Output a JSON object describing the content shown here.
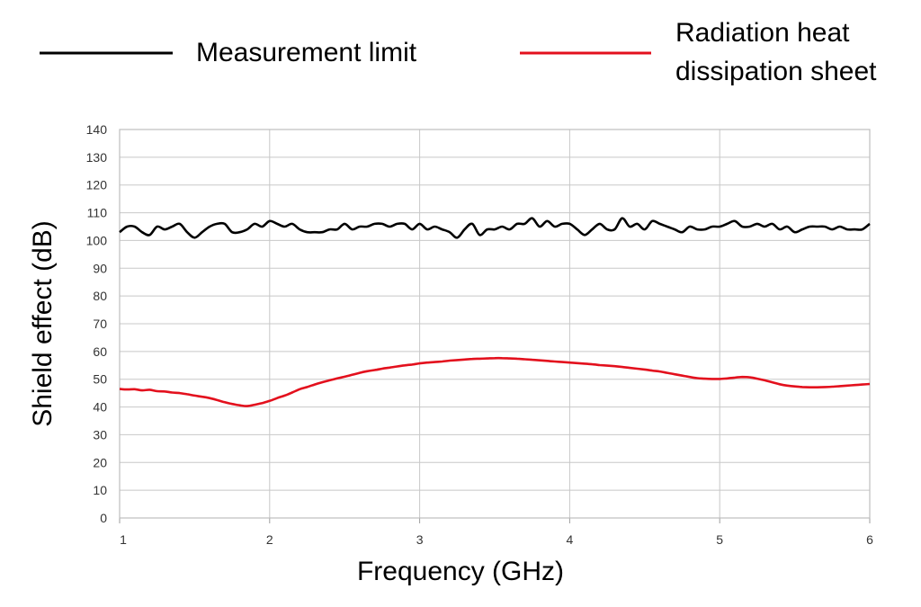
{
  "chart_data": {
    "type": "line",
    "title": "",
    "xlabel": "Frequency (GHz)",
    "ylabel": "Shield effect (dB)",
    "xlim": [
      1,
      6
    ],
    "ylim": [
      0,
      140
    ],
    "x_ticks": [
      1,
      2,
      3,
      4,
      5,
      6
    ],
    "y_ticks": [
      0,
      10,
      20,
      30,
      40,
      50,
      60,
      70,
      80,
      90,
      100,
      110,
      120,
      130,
      140
    ],
    "grid": true,
    "legend_position": "top",
    "series": [
      {
        "name": "Measurement limit",
        "color": "#000000",
        "x": [
          1.0,
          1.05,
          1.1,
          1.15,
          1.2,
          1.25,
          1.3,
          1.35,
          1.4,
          1.45,
          1.5,
          1.55,
          1.6,
          1.65,
          1.7,
          1.75,
          1.8,
          1.85,
          1.9,
          1.95,
          2.0,
          2.05,
          2.1,
          2.15,
          2.2,
          2.25,
          2.3,
          2.35,
          2.4,
          2.45,
          2.5,
          2.55,
          2.6,
          2.65,
          2.7,
          2.75,
          2.8,
          2.85,
          2.9,
          2.95,
          3.0,
          3.05,
          3.1,
          3.15,
          3.2,
          3.25,
          3.3,
          3.35,
          3.4,
          3.45,
          3.5,
          3.55,
          3.6,
          3.65,
          3.7,
          3.75,
          3.8,
          3.85,
          3.9,
          3.95,
          4.0,
          4.05,
          4.1,
          4.15,
          4.2,
          4.25,
          4.3,
          4.35,
          4.4,
          4.45,
          4.5,
          4.55,
          4.6,
          4.65,
          4.7,
          4.75,
          4.8,
          4.85,
          4.9,
          4.95,
          5.0,
          5.05,
          5.1,
          5.15,
          5.2,
          5.25,
          5.3,
          5.35,
          5.4,
          5.45,
          5.5,
          5.55,
          5.6,
          5.65,
          5.7,
          5.75,
          5.8,
          5.85,
          5.9,
          5.95,
          6.0
        ],
        "y": [
          103,
          105,
          105,
          103,
          102,
          105,
          104,
          105,
          106,
          103,
          101,
          103,
          105,
          106,
          106,
          103,
          103,
          104,
          106,
          105,
          107,
          106,
          105,
          106,
          104,
          103,
          103,
          103,
          104,
          104,
          106,
          104,
          105,
          105,
          106,
          106,
          105,
          106,
          106,
          104,
          106,
          104,
          105,
          104,
          103,
          101,
          104,
          106,
          102,
          104,
          104,
          105,
          104,
          106,
          106,
          108,
          105,
          107,
          105,
          106,
          106,
          104,
          102,
          104,
          106,
          104,
          104,
          108,
          105,
          106,
          104,
          107,
          106,
          105,
          104,
          103,
          105,
          104,
          104,
          105,
          105,
          106,
          107,
          105,
          105,
          106,
          105,
          106,
          104,
          105,
          103,
          104,
          105,
          105,
          105,
          104,
          105,
          104,
          104,
          104,
          106
        ]
      },
      {
        "name": "Radiation heat dissipation sheet",
        "color": "#e3101d",
        "x": [
          1.0,
          1.05,
          1.1,
          1.15,
          1.2,
          1.25,
          1.3,
          1.35,
          1.4,
          1.45,
          1.5,
          1.55,
          1.6,
          1.65,
          1.7,
          1.75,
          1.8,
          1.85,
          1.9,
          1.95,
          2.0,
          2.05,
          2.1,
          2.15,
          2.2,
          2.25,
          2.3,
          2.35,
          2.4,
          2.45,
          2.5,
          2.55,
          2.6,
          2.65,
          2.7,
          2.75,
          2.8,
          2.85,
          2.9,
          2.95,
          3.0,
          3.05,
          3.1,
          3.15,
          3.2,
          3.25,
          3.3,
          3.35,
          3.4,
          3.45,
          3.5,
          3.55,
          3.6,
          3.65,
          3.7,
          3.75,
          3.8,
          3.85,
          3.9,
          3.95,
          4.0,
          4.05,
          4.1,
          4.15,
          4.2,
          4.25,
          4.3,
          4.35,
          4.4,
          4.45,
          4.5,
          4.55,
          4.6,
          4.65,
          4.7,
          4.75,
          4.8,
          4.85,
          4.9,
          4.95,
          5.0,
          5.05,
          5.1,
          5.15,
          5.2,
          5.25,
          5.3,
          5.35,
          5.4,
          5.45,
          5.5,
          5.55,
          5.6,
          5.65,
          5.7,
          5.75,
          5.8,
          5.85,
          5.9,
          5.95,
          6.0
        ],
        "y": [
          46.5,
          46.3,
          46.4,
          46,
          46.2,
          45.7,
          45.6,
          45.2,
          45,
          44.6,
          44.1,
          43.7,
          43.2,
          42.5,
          41.7,
          41.1,
          40.6,
          40.3,
          40.8,
          41.4,
          42.2,
          43.2,
          44.1,
          45.2,
          46.4,
          47.2,
          48.1,
          48.9,
          49.6,
          50.3,
          50.9,
          51.6,
          52.3,
          52.9,
          53.3,
          53.8,
          54.2,
          54.6,
          55,
          55.3,
          55.7,
          56,
          56.2,
          56.4,
          56.7,
          56.9,
          57.1,
          57.3,
          57.4,
          57.5,
          57.6,
          57.6,
          57.5,
          57.4,
          57.2,
          57,
          56.8,
          56.6,
          56.4,
          56.2,
          56,
          55.8,
          55.6,
          55.4,
          55.1,
          54.9,
          54.7,
          54.4,
          54.1,
          53.8,
          53.5,
          53.1,
          52.8,
          52.3,
          51.8,
          51.3,
          50.8,
          50.4,
          50.2,
          50.1,
          50.1,
          50.3,
          50.6,
          50.8,
          50.7,
          50.2,
          49.6,
          48.9,
          48.2,
          47.7,
          47.4,
          47.2,
          47.1,
          47.1,
          47.2,
          47.3,
          47.5,
          47.7,
          47.9,
          48.1,
          48.3
        ]
      }
    ]
  }
}
